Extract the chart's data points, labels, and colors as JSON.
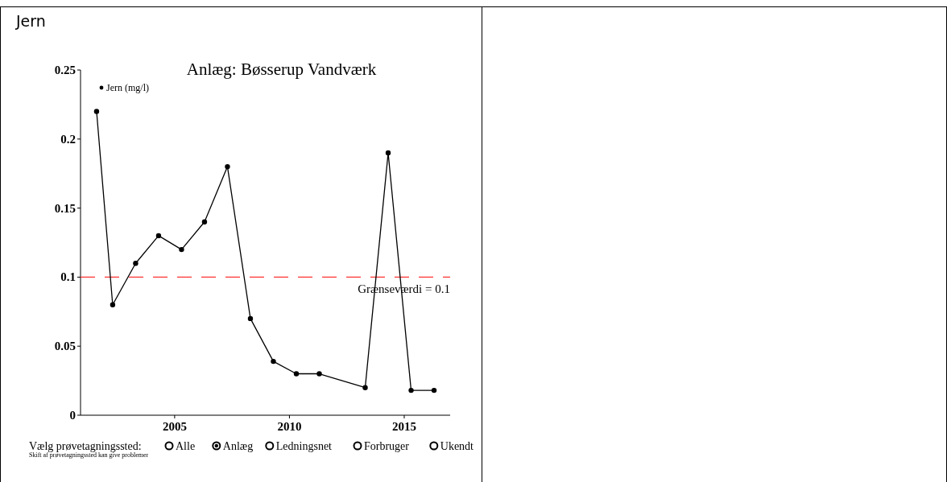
{
  "chart_data": {
    "type": "line",
    "title": "Anlæg: Bøsserup Vandværk",
    "x": [
      2001.6,
      2002.3,
      2003.3,
      2004.3,
      2005.3,
      2006.3,
      2007.3,
      2008.3,
      2009.3,
      2010.3,
      2011.3,
      2013.3,
      2014.3,
      2015.3,
      2016.3
    ],
    "series": [
      {
        "name": "Jern (mg/l)",
        "color": "#000000",
        "values": [
          0.22,
          0.08,
          0.11,
          0.13,
          0.12,
          0.14,
          0.18,
          0.07,
          0.039,
          0.03,
          0.03,
          0.02,
          0.19,
          0.018,
          0.018
        ]
      }
    ],
    "xlim": [
      2000.9,
      2017
    ],
    "xticks": [
      2005,
      2010,
      2015
    ],
    "ylim": [
      0,
      0.25
    ],
    "yticks": [
      0,
      0.05,
      0.1,
      0.15,
      0.2,
      0.25
    ],
    "ref_lines": [
      {
        "axis": "y",
        "value": 0.1,
        "label": "Grænseværdi = 0.1",
        "color": "#ff3333",
        "line_style": "dashed"
      }
    ],
    "marker": "circle",
    "line_style": "solid",
    "legend": "top left",
    "grid": false,
    "annotations": [
      "Jern",
      "Vælg prøvetagningssted:",
      "Alle",
      "Anlæg",
      "Ledningsnet",
      "Forbruger",
      "Ukendt",
      "Skift af prøvetagningssted kan give problemer"
    ]
  }
}
